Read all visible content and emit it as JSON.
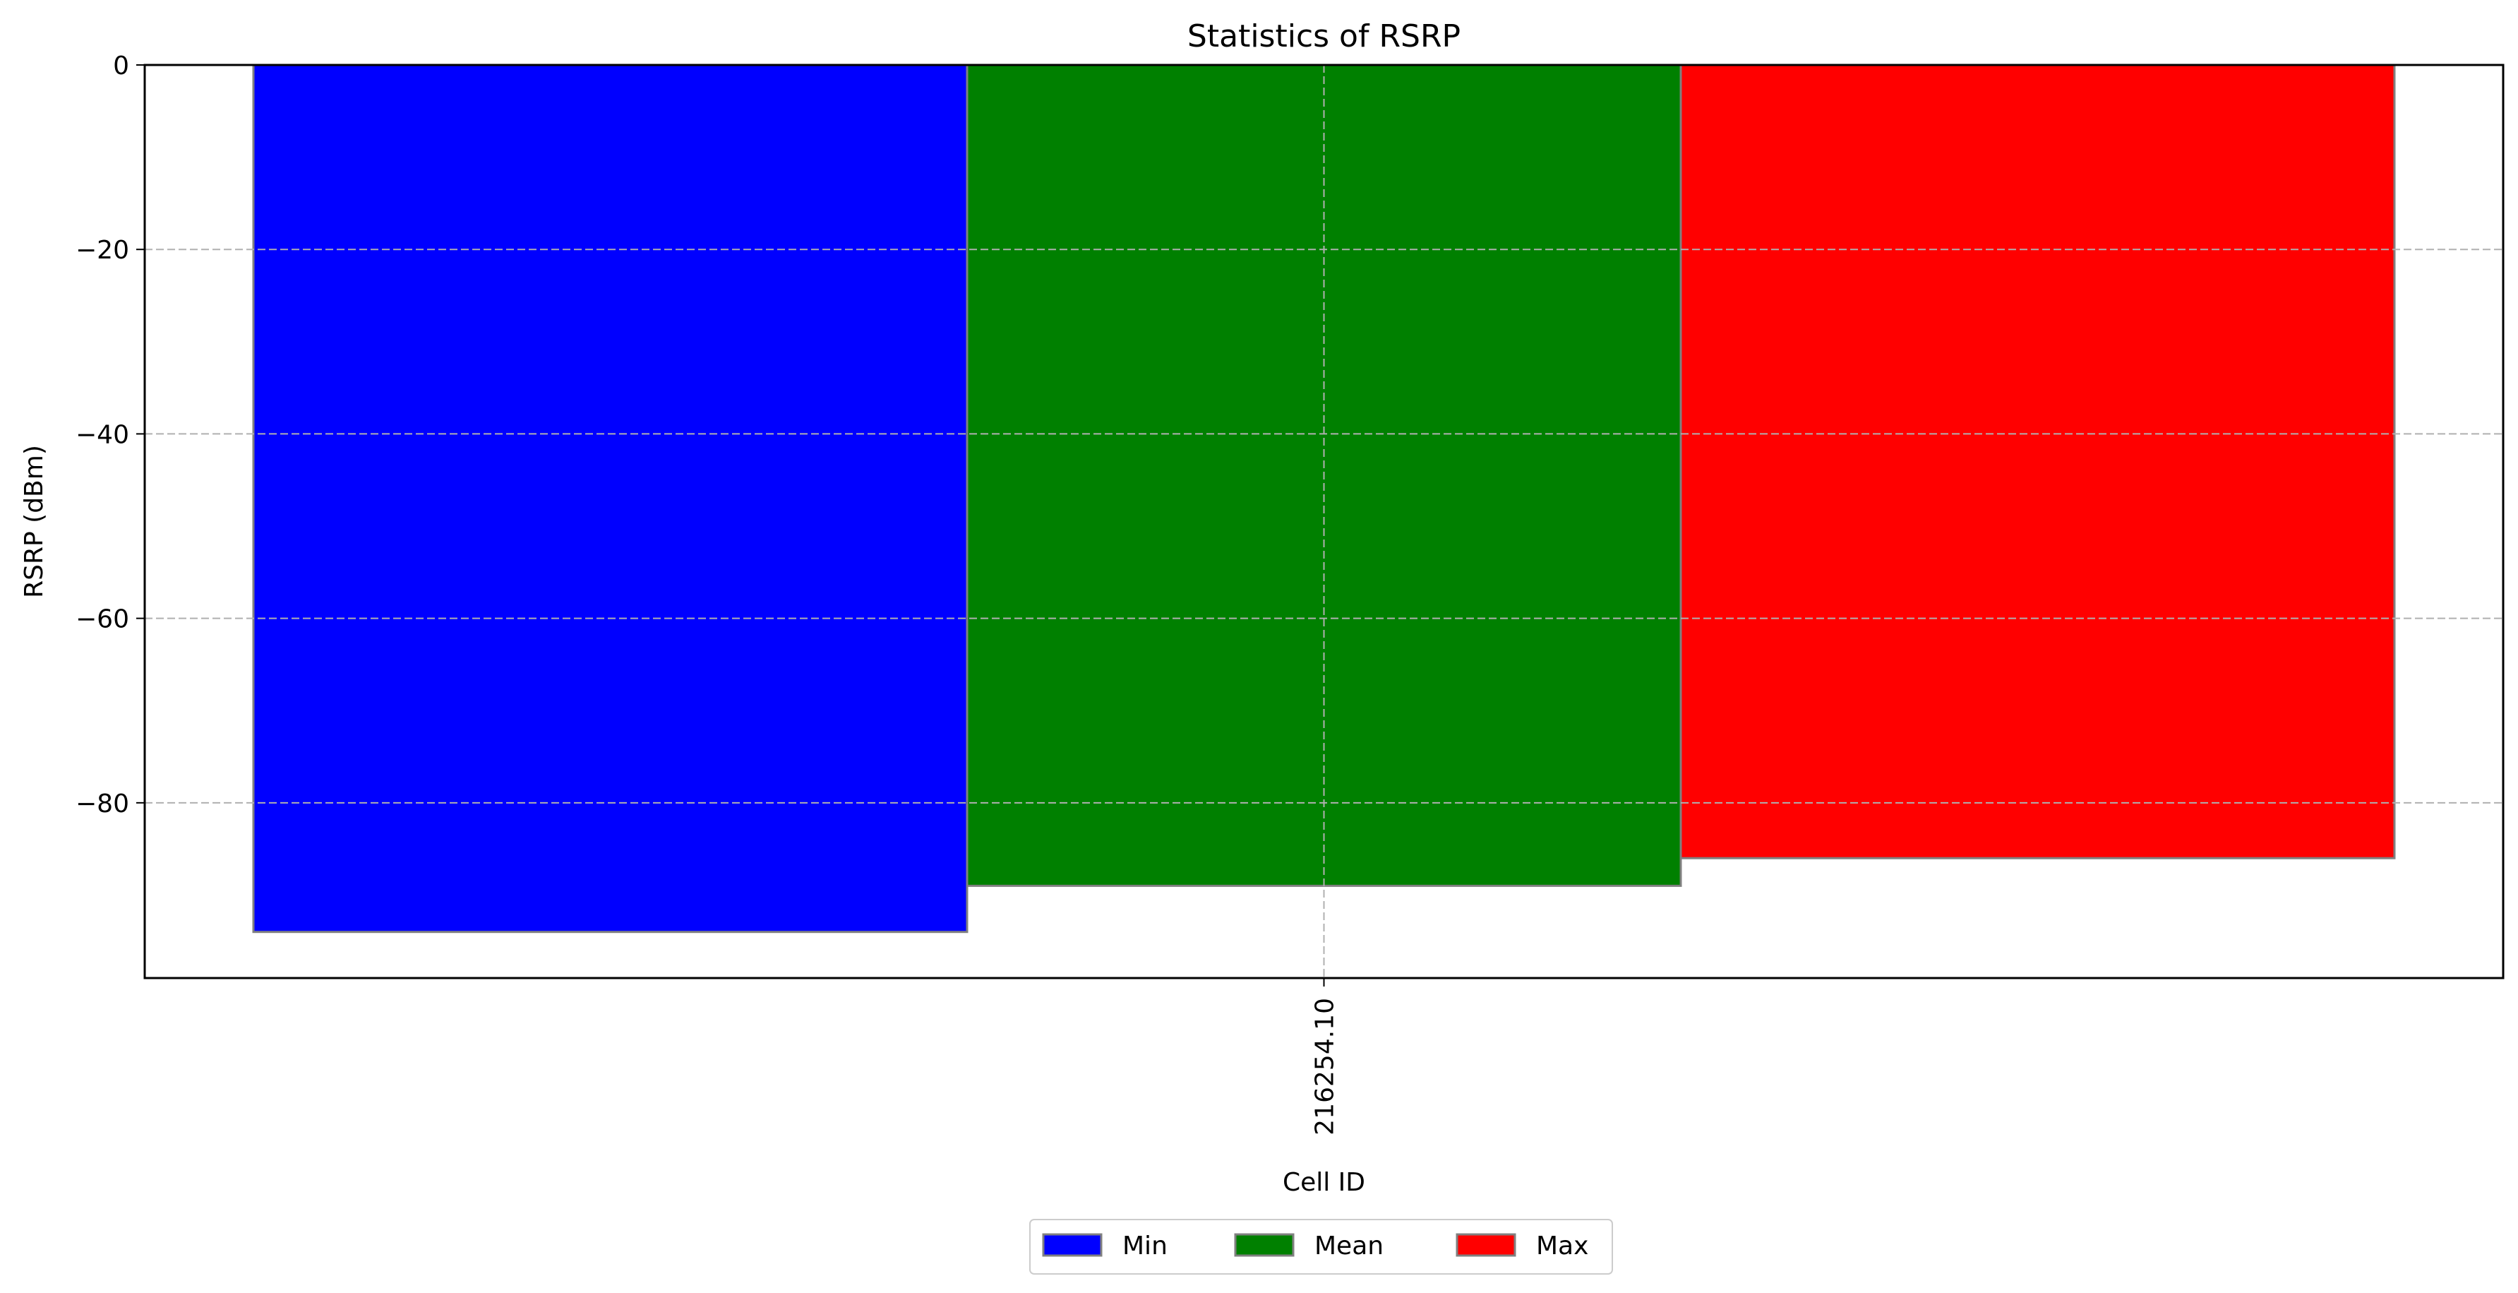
{
  "chart_data": {
    "type": "bar",
    "title": "Statistics of RSRP",
    "xlabel": "Cell ID",
    "ylabel": "RSRP (dBm)",
    "categories": [
      "216254.10"
    ],
    "series": [
      {
        "name": "Min",
        "values": [
          -94
        ],
        "color": "#0000ff"
      },
      {
        "name": "Mean",
        "values": [
          -89
        ],
        "color": "#008000"
      },
      {
        "name": "Max",
        "values": [
          -86
        ],
        "color": "#ff0000"
      }
    ],
    "ylim": [
      -99,
      0
    ],
    "yticks": [
      0,
      -20,
      -40,
      -60,
      -80
    ],
    "ytick_labels": [
      "0",
      "−20",
      "−40",
      "−60",
      "−80"
    ],
    "grid": true,
    "legend_placement": "bottom-center",
    "bar_edge_color": "#808080",
    "grid_color": "#b0b0b0"
  }
}
